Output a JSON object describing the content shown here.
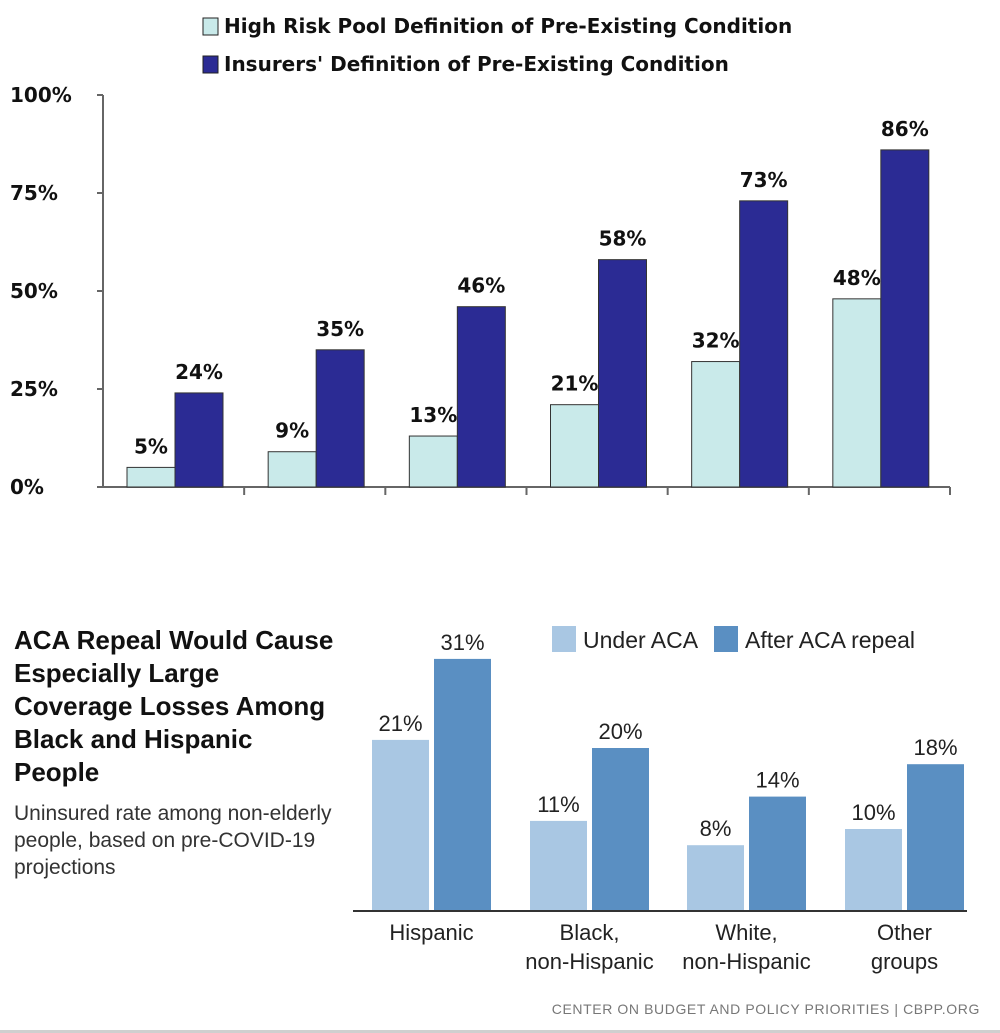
{
  "chart_data": [
    {
      "type": "bar",
      "categories": [
        "",
        "",
        "",
        "",
        "",
        ""
      ],
      "series": [
        {
          "name": "High Risk Pool Definition of Pre-Existing Condition",
          "values": [
            5,
            9,
            13,
            21,
            32,
            48
          ],
          "labels": [
            "5%",
            "9%",
            "13%",
            "21%",
            "32%",
            "48%"
          ],
          "color": "#c9eaea"
        },
        {
          "name": "Insurers' Definition of Pre-Existing Condition",
          "values": [
            24,
            35,
            46,
            58,
            73,
            86
          ],
          "labels": [
            "24%",
            "35%",
            "46%",
            "58%",
            "73%",
            "86%"
          ],
          "color": "#2b2b94"
        }
      ],
      "yticks": [
        "0%",
        "25%",
        "50%",
        "75%",
        "100%"
      ],
      "ylim": [
        0,
        100
      ],
      "legend": "top-left"
    },
    {
      "type": "bar",
      "title": "ACA Repeal Would Cause Especially Large Coverage Losses Among Black and Hispanic People",
      "subtitle": "Uninsured rate among non-elderly people, based on pre-COVID-19 projections",
      "categories": [
        [
          "Hispanic"
        ],
        [
          "Black,",
          "non-Hispanic"
        ],
        [
          "White,",
          "non-Hispanic"
        ],
        [
          "Other",
          "groups"
        ]
      ],
      "series": [
        {
          "name": "Under ACA",
          "values": [
            21,
            11,
            8,
            10
          ],
          "labels": [
            "21%",
            "11%",
            "8%",
            "10%"
          ],
          "color": "#a9c7e3"
        },
        {
          "name": "After ACA repeal",
          "values": [
            31,
            20,
            14,
            18
          ],
          "labels": [
            "31%",
            "20%",
            "14%",
            "18%"
          ],
          "color": "#5a8fc2"
        }
      ],
      "legend": "top"
    }
  ],
  "footer": {
    "source": "CENTER ON BUDGET AND POLICY PRIORITIES | CBPP.ORG"
  }
}
